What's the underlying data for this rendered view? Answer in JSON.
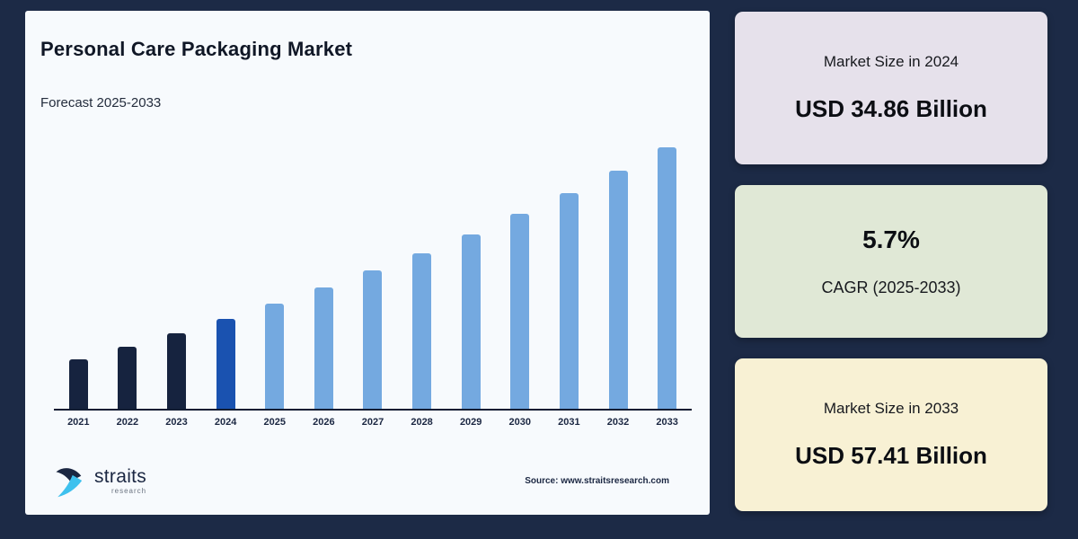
{
  "page": {
    "background_color": "#1c2a46",
    "panel_color": "#f7fafd"
  },
  "header": {
    "title": "Personal Care Packaging Market",
    "subtitle": "Forecast 2025-2033"
  },
  "chart_data": {
    "type": "bar",
    "title": "Personal Care Packaging Market",
    "subtitle": "Forecast 2025-2033",
    "categories": [
      "2021",
      "2022",
      "2023",
      "2024",
      "2025",
      "2026",
      "2027",
      "2028",
      "2029",
      "2030",
      "2031",
      "2032",
      "2033"
    ],
    "values": [
      29.52,
      31.2,
      32.98,
      34.86,
      36.85,
      38.95,
      41.17,
      43.52,
      46.0,
      48.62,
      51.39,
      54.32,
      57.41
    ],
    "unit": "USD Billion",
    "xlabel": "",
    "ylabel": "",
    "ylim": [
      23,
      58.5
    ],
    "grid": false,
    "legend": false,
    "bar_roles": [
      "historical",
      "historical",
      "historical",
      "base-year",
      "forecast",
      "forecast",
      "forecast",
      "forecast",
      "forecast",
      "forecast",
      "forecast",
      "forecast",
      "forecast"
    ],
    "segments": [
      {
        "role": "historical",
        "years": "2021-2023",
        "color": "#16233f"
      },
      {
        "role": "base-year",
        "years": "2024",
        "color": "#1a52b0"
      },
      {
        "role": "forecast",
        "years": "2025-2033",
        "color": "#74a9e0"
      }
    ]
  },
  "cards": [
    {
      "label": "Market Size in 2024",
      "value": "USD 34.86 Billion",
      "background": "#e6e1eb"
    },
    {
      "label": "CAGR (2025-2033)",
      "value": "5.7%",
      "background": "#e0e8d6"
    },
    {
      "label": "Market Size in 2033",
      "value": "USD 57.41 Billion",
      "background": "#f8f1d4"
    }
  ],
  "footer": {
    "logo_text": "straits",
    "logo_subtext": "research",
    "source": "Source: www.straitsresearch.com",
    "logo_colors": {
      "navy": "#1b2742",
      "cyan": "#3ec1ee"
    }
  }
}
